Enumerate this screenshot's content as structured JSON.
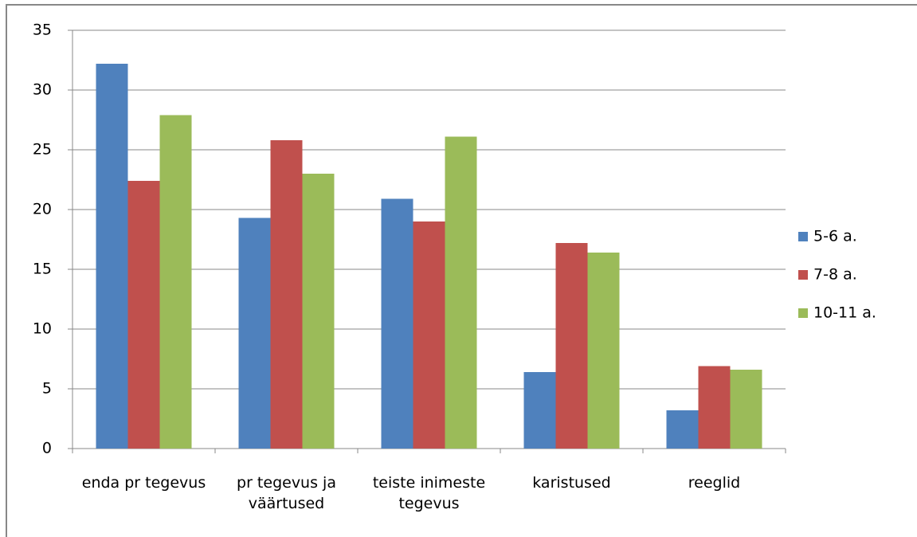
{
  "chart_data": {
    "type": "bar",
    "categories": [
      "enda pr tegevus",
      "pr tegevus ja väärtused",
      "teiste inimeste tegevus",
      "karistused",
      "reeglid"
    ],
    "series": [
      {
        "name": "5-6 a.",
        "color": "#4f81bd",
        "values": [
          32.2,
          19.3,
          20.9,
          6.4,
          3.2
        ]
      },
      {
        "name": "7-8 a.",
        "color": "#c0504d",
        "values": [
          22.4,
          25.8,
          19.0,
          17.2,
          6.9
        ]
      },
      {
        "name": "10-11 a.",
        "color": "#9bbb59",
        "values": [
          27.9,
          23.0,
          26.1,
          16.4,
          6.6
        ]
      }
    ],
    "ylim": [
      0,
      35
    ],
    "yticks": [
      0,
      5,
      10,
      15,
      20,
      25,
      30,
      35
    ],
    "grid": true,
    "legend": "right"
  }
}
